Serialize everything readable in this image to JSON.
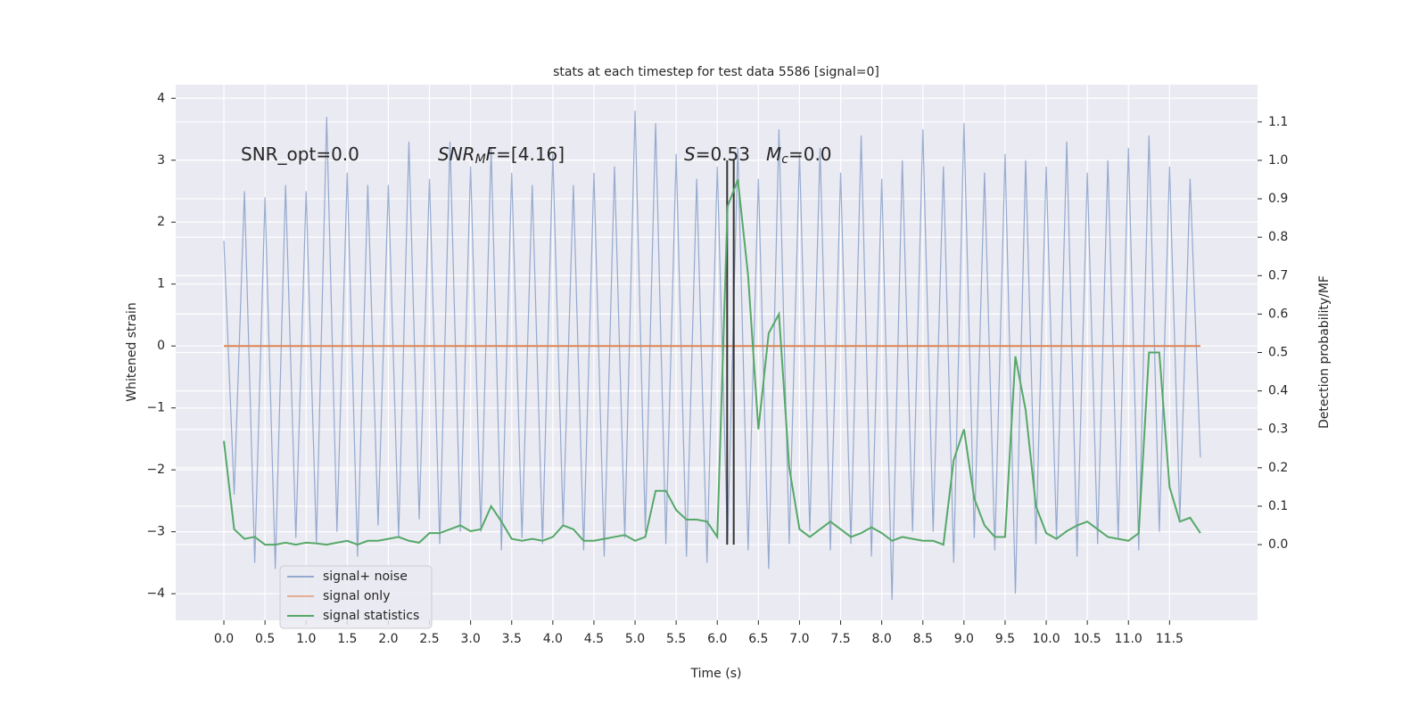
{
  "chart_data": {
    "type": "line",
    "title": "stats at each timestep for test data 5586 [signal=0]",
    "x_label": "Time (s)",
    "y_label": "Whitened strain",
    "y2_label": "Detection probability/MF",
    "grid": true,
    "legend": "lower left",
    "xlim": [
      -0.586,
      12.57
    ],
    "ylim": [
      -4.43,
      4.22
    ],
    "y2lim": [
      -0.197,
      1.197
    ],
    "xticks": [
      {
        "value": 0,
        "label": "0.0"
      },
      0.5,
      {
        "value": 1,
        "label": "1.0"
      },
      1.5,
      {
        "value": 2,
        "label": "2.0"
      },
      2.5,
      {
        "value": 3,
        "label": "3.0"
      },
      3.5,
      {
        "value": 4,
        "label": "4.0"
      },
      4.5,
      {
        "value": 5,
        "label": "5.0"
      },
      5.5,
      {
        "value": 6,
        "label": "6.0"
      },
      6.5,
      {
        "value": 7,
        "label": "7.0"
      },
      7.5,
      {
        "value": 8,
        "label": "8.0"
      },
      8.5,
      {
        "value": 9,
        "label": "9.0"
      },
      9.5,
      {
        "value": 10,
        "label": "10.0"
      },
      10.5,
      {
        "value": 11,
        "label": "11.0"
      },
      11.5
    ],
    "yticks": [
      {
        "value": -4,
        "label": "−4"
      },
      {
        "value": -3,
        "label": "−3"
      },
      {
        "value": -2,
        "label": "−2"
      },
      {
        "value": -1,
        "label": "−1"
      },
      0,
      1,
      2,
      3,
      4
    ],
    "y2ticks": [
      {
        "value": 0,
        "label": "0.0"
      },
      0.1,
      0.2,
      0.3,
      0.4,
      0.5,
      0.6,
      0.7,
      0.8,
      0.9,
      {
        "value": 1,
        "label": "1.0"
      },
      1.1
    ],
    "annotations": [
      [
        "SNR_opt=0.0"
      ],
      [
        "SNR",
        "M",
        "F",
        "=[4.16]"
      ],
      [
        "S",
        "=0.53"
      ],
      [
        "M",
        "c",
        "=0.0"
      ]
    ],
    "vlines": {
      "x": [
        6.12,
        6.2
      ],
      "y2": [
        0,
        1
      ],
      "color": "#333333"
    },
    "x": [
      0,
      0.125,
      0.25,
      0.375,
      0.5,
      0.625,
      0.75,
      0.875,
      1,
      1.125,
      1.25,
      1.375,
      1.5,
      1.625,
      1.75,
      1.875,
      2,
      2.125,
      2.25,
      2.375,
      2.5,
      2.625,
      2.75,
      2.875,
      3,
      3.125,
      3.25,
      3.375,
      3.5,
      3.625,
      3.75,
      3.875,
      4,
      4.125,
      4.25,
      4.375,
      4.5,
      4.625,
      4.75,
      4.875,
      5,
      5.125,
      5.25,
      5.375,
      5.5,
      5.625,
      5.75,
      5.875,
      6,
      6.125,
      6.25,
      6.375,
      6.5,
      6.625,
      6.75,
      6.875,
      7,
      7.125,
      7.25,
      7.375,
      7.5,
      7.625,
      7.75,
      7.875,
      8,
      8.125,
      8.25,
      8.375,
      8.5,
      8.625,
      8.75,
      8.875,
      9,
      9.125,
      9.25,
      9.375,
      9.5,
      9.625,
      9.75,
      9.875,
      10,
      10.125,
      10.25,
      10.375,
      10.5,
      10.625,
      10.75,
      10.875,
      11,
      11.125,
      11.25,
      11.375,
      11.5,
      11.625,
      11.75,
      11.875
    ],
    "series": [
      {
        "name": "signal+ noise",
        "color": "#4c72b0",
        "values": [
          1.7,
          -2.4,
          2.5,
          -3.5,
          2.4,
          -3.6,
          2.6,
          -3.1,
          2.5,
          -3.2,
          3.7,
          -3.0,
          2.8,
          -3.4,
          2.6,
          -2.9,
          2.6,
          -3.1,
          3.3,
          -2.8,
          2.7,
          -3.2,
          3.3,
          -3.0,
          2.9,
          -3.0,
          3.2,
          -3.3,
          2.8,
          -3.1,
          2.6,
          -3.2,
          3.1,
          -2.9,
          2.6,
          -3.3,
          2.8,
          -3.4,
          2.9,
          -3.1,
          3.8,
          -3.0,
          3.6,
          -3.2,
          3.1,
          -3.4,
          2.7,
          -3.5,
          2.9,
          -3.2,
          3.2,
          -3.3,
          2.7,
          -3.6,
          3.5,
          -3.2,
          3.1,
          -3.0,
          3.2,
          -3.3,
          2.8,
          -3.2,
          3.4,
          -3.4,
          2.7,
          -4.1,
          3.0,
          -3.0,
          3.5,
          -3.0,
          2.9,
          -3.5,
          3.6,
          -3.1,
          2.8,
          -3.3,
          3.1,
          -4.0,
          3.0,
          -3.2,
          2.9,
          -3.1,
          3.3,
          -3.4,
          2.8,
          -3.2,
          3.0,
          -3.1,
          3.2,
          -3.3,
          3.4,
          -3.0,
          2.9,
          -2.8,
          2.7,
          -1.8
        ]
      },
      {
        "name": "signal only",
        "color": "#dd8452",
        "values": [
          0,
          0,
          0,
          0,
          0,
          0,
          0,
          0,
          0,
          0,
          0,
          0,
          0,
          0,
          0,
          0,
          0,
          0,
          0,
          0,
          0,
          0,
          0,
          0,
          0,
          0,
          0,
          0,
          0,
          0,
          0,
          0,
          0,
          0,
          0,
          0,
          0,
          0,
          0,
          0,
          0,
          0,
          0,
          0,
          0,
          0,
          0,
          0,
          0,
          0,
          0,
          0,
          0,
          0,
          0,
          0,
          0,
          0,
          0,
          0,
          0,
          0,
          0,
          0,
          0,
          0,
          0,
          0,
          0,
          0,
          0,
          0,
          0,
          0,
          0,
          0,
          0,
          0,
          0,
          0,
          0,
          0,
          0,
          0,
          0,
          0,
          0,
          0,
          0,
          0,
          0,
          0,
          0,
          0,
          0,
          0
        ]
      },
      {
        "name": "signal statistics",
        "color": "#55a868",
        "axis": "y2",
        "values": [
          0.27,
          0.04,
          0.015,
          0.02,
          0.0,
          0.0,
          0.005,
          0.0,
          0.005,
          0.003,
          0.0,
          0.005,
          0.01,
          0.0,
          0.01,
          0.01,
          0.015,
          0.02,
          0.01,
          0.005,
          0.03,
          0.03,
          0.04,
          0.05,
          0.035,
          0.04,
          0.1,
          0.06,
          0.015,
          0.01,
          0.015,
          0.01,
          0.02,
          0.05,
          0.04,
          0.01,
          0.01,
          0.015,
          0.02,
          0.025,
          0.01,
          0.02,
          0.14,
          0.14,
          0.09,
          0.065,
          0.065,
          0.06,
          0.02,
          0.88,
          0.95,
          0.7,
          0.3,
          0.55,
          0.6,
          0.2,
          0.04,
          0.02,
          0.04,
          0.06,
          0.04,
          0.02,
          0.03,
          0.045,
          0.03,
          0.01,
          0.02,
          0.015,
          0.01,
          0.01,
          0.0,
          0.22,
          0.3,
          0.12,
          0.05,
          0.02,
          0.02,
          0.49,
          0.35,
          0.1,
          0.03,
          0.015,
          0.035,
          0.05,
          0.06,
          0.04,
          0.02,
          0.015,
          0.01,
          0.03,
          0.5,
          0.5,
          0.15,
          0.06,
          0.07,
          0.03
        ]
      }
    ]
  }
}
